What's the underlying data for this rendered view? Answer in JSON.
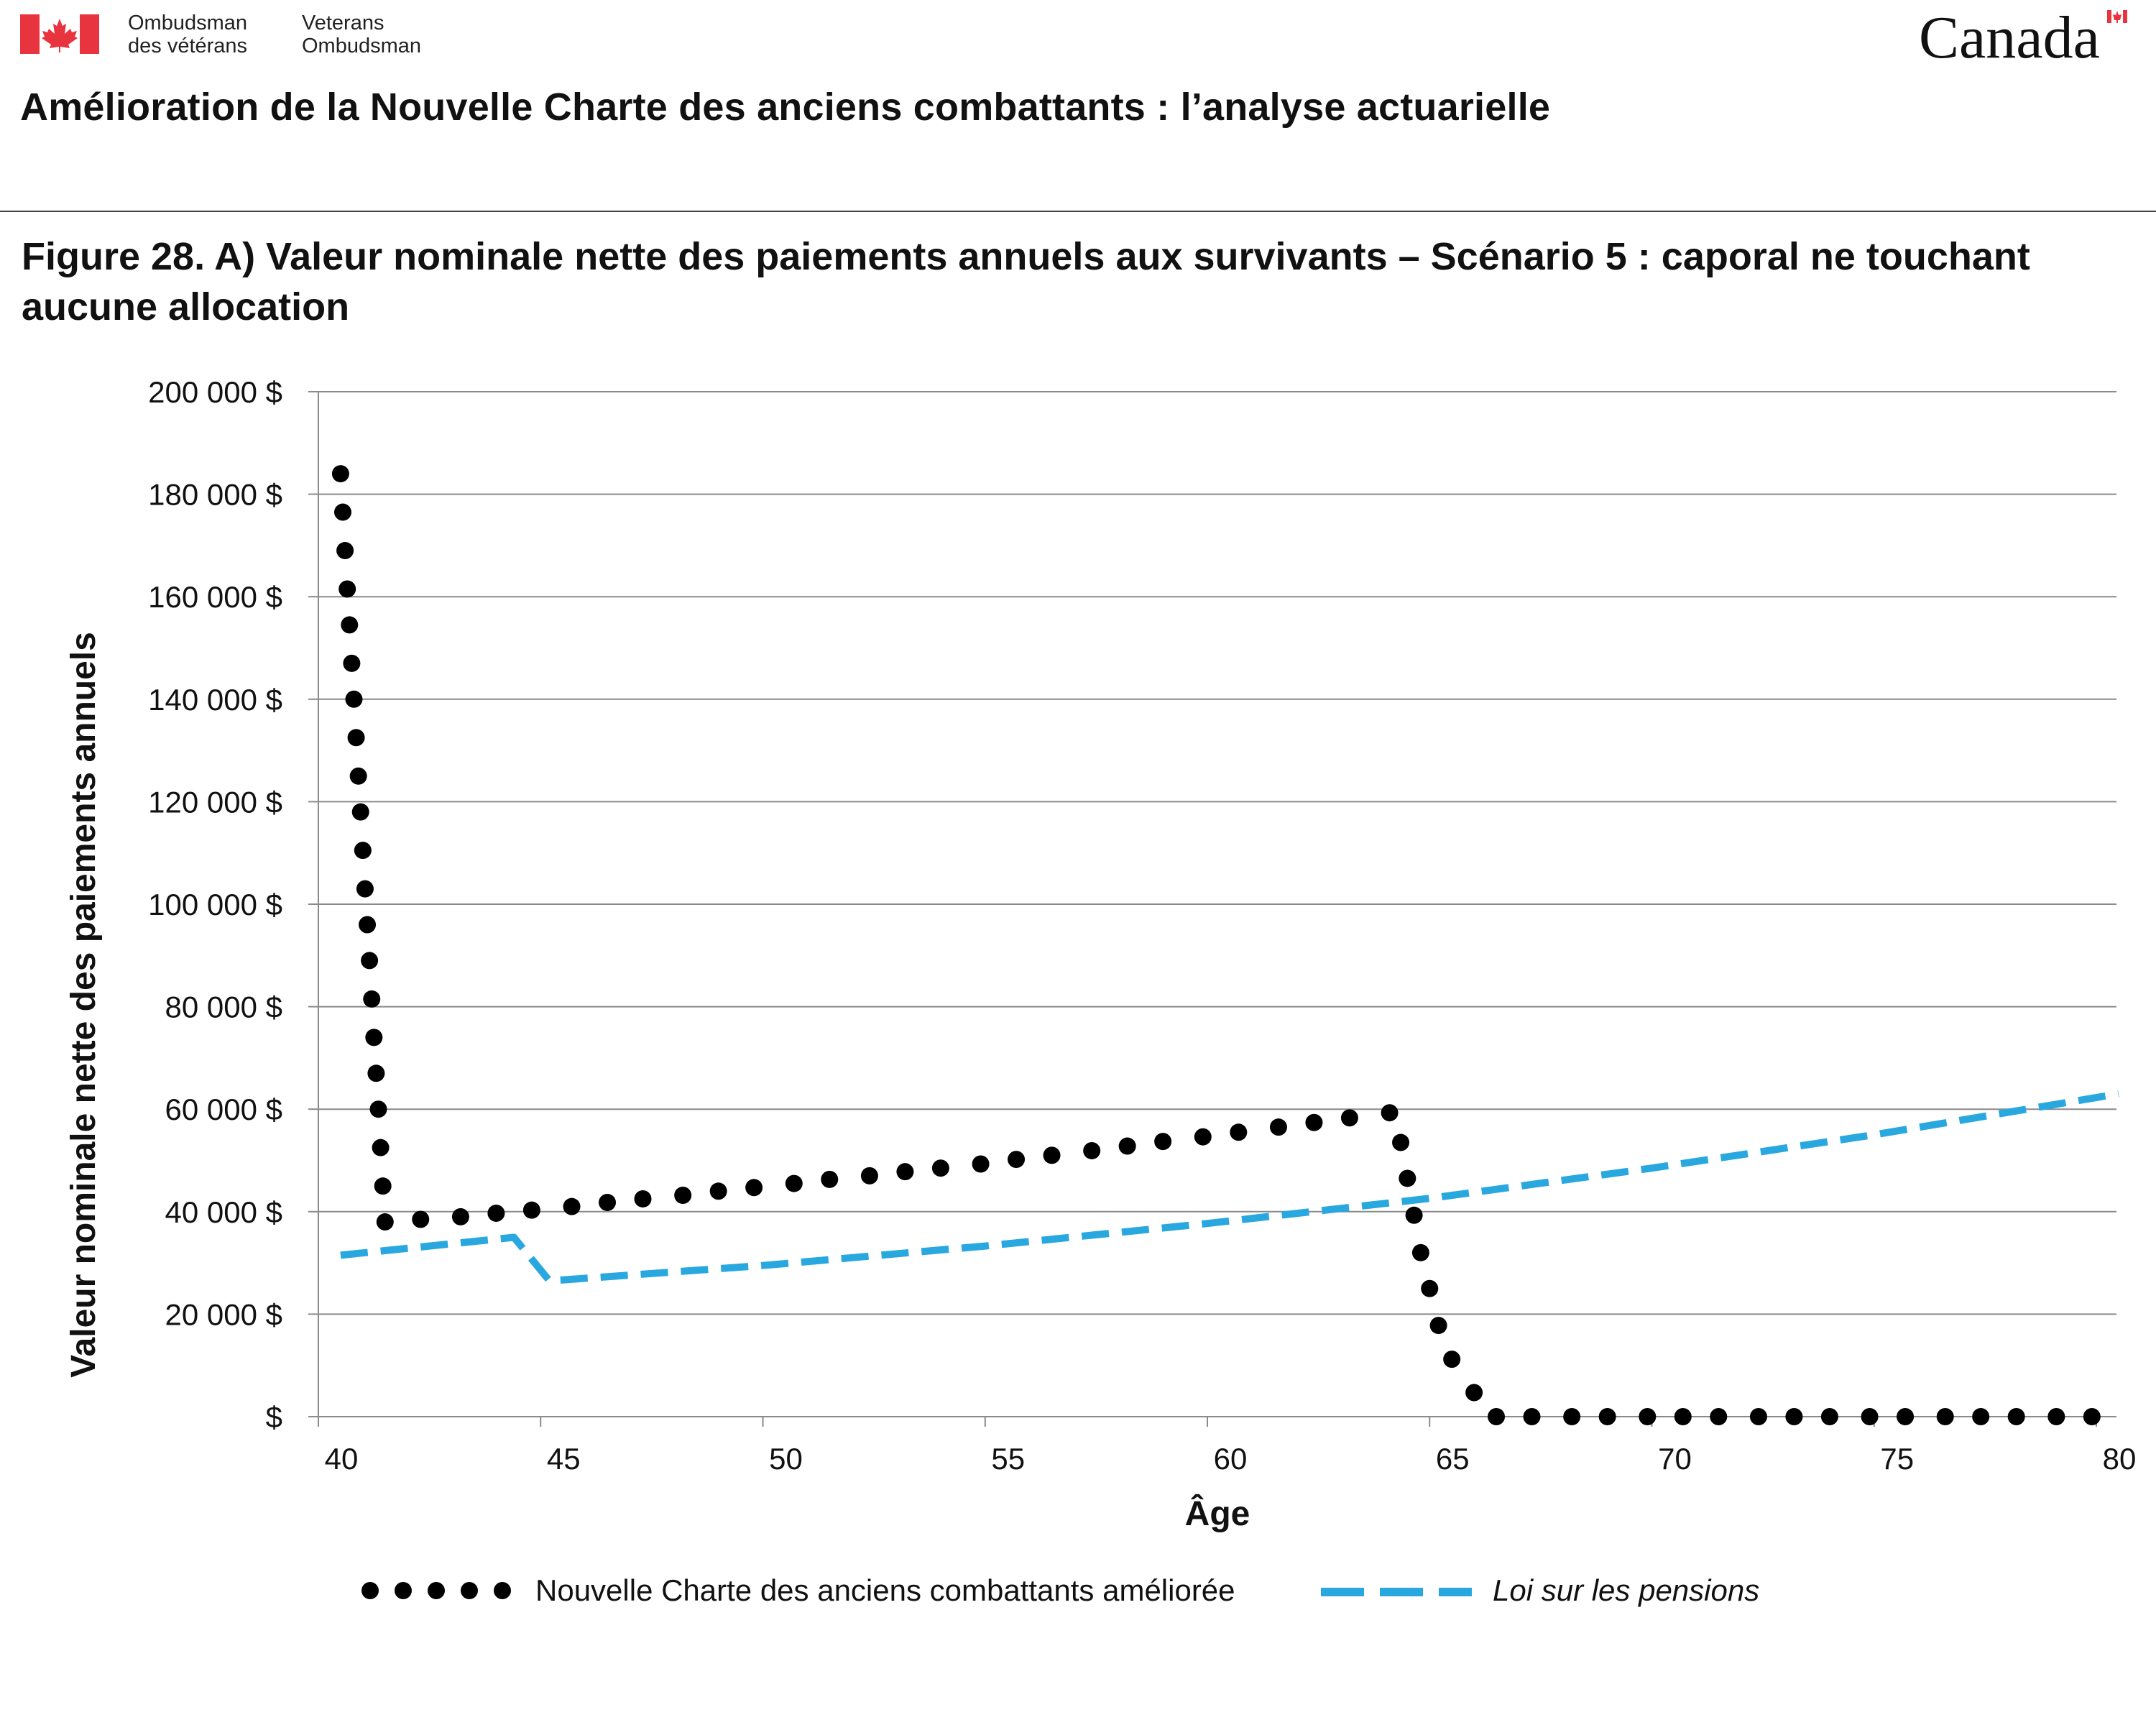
{
  "header": {
    "org_fr_line1": "Ombudsman",
    "org_fr_line2": "des vétérans",
    "org_en_line1": "Veterans",
    "org_en_line2": "Ombudsman",
    "wordmark": "Canada",
    "document_title": "Amélioration de la Nouvelle Charte des anciens combattants : l’analyse actuarielle",
    "flag_icon": "canada-flag-icon",
    "colors": {
      "flag_red": "#e8343e"
    }
  },
  "figure": {
    "title": "Figure 28. A) Valeur nominale nette des paiements annuels aux survivants – Scénario 5 : caporal ne touchant aucune allocation"
  },
  "chart_data": {
    "type": "line",
    "xlabel": "Âge",
    "ylabel": "Valeur nominale nette des paiements annuels",
    "xlim": [
      40,
      80
    ],
    "ylim": [
      0,
      200000
    ],
    "x_ticks": [
      "40",
      "45",
      "50",
      "55",
      "60",
      "65",
      "70",
      "75",
      "80"
    ],
    "y_ticks": [
      "$",
      "20 000 $",
      "40 000 $",
      "60 000 $",
      "80 000 $",
      "100 000 $",
      "120 000 $",
      "140 000 $",
      "160 000 $",
      "180 000 $",
      "200 000 $"
    ],
    "grid": "horizontal",
    "legend_position": "bottom",
    "series": [
      {
        "name": "Nouvelle Charte des anciens combattants améliorée",
        "style": "dotted",
        "color": "#000000",
        "points": [
          [
            40.5,
            184000
          ],
          [
            40.55,
            176500
          ],
          [
            40.6,
            169000
          ],
          [
            40.65,
            161500
          ],
          [
            40.7,
            154500
          ],
          [
            40.75,
            147000
          ],
          [
            40.8,
            140000
          ],
          [
            40.85,
            132500
          ],
          [
            40.9,
            125000
          ],
          [
            40.95,
            118000
          ],
          [
            41.0,
            110500
          ],
          [
            41.05,
            103000
          ],
          [
            41.1,
            96000
          ],
          [
            41.15,
            89000
          ],
          [
            41.2,
            81500
          ],
          [
            41.25,
            74000
          ],
          [
            41.3,
            67000
          ],
          [
            41.35,
            60000
          ],
          [
            41.4,
            52500
          ],
          [
            41.45,
            45000
          ],
          [
            41.5,
            38000
          ],
          [
            42.3,
            38500
          ],
          [
            43.2,
            39000
          ],
          [
            44.0,
            39700
          ],
          [
            44.8,
            40300
          ],
          [
            45.7,
            41000
          ],
          [
            46.5,
            41800
          ],
          [
            47.3,
            42500
          ],
          [
            48.2,
            43200
          ],
          [
            49.0,
            44000
          ],
          [
            49.8,
            44700
          ],
          [
            50.7,
            45500
          ],
          [
            51.5,
            46300
          ],
          [
            52.4,
            47000
          ],
          [
            53.2,
            47800
          ],
          [
            54.0,
            48500
          ],
          [
            54.9,
            49300
          ],
          [
            55.7,
            50200
          ],
          [
            56.5,
            51000
          ],
          [
            57.4,
            51900
          ],
          [
            58.2,
            52800
          ],
          [
            59.0,
            53700
          ],
          [
            59.9,
            54600
          ],
          [
            60.7,
            55500
          ],
          [
            61.6,
            56500
          ],
          [
            62.4,
            57400
          ],
          [
            63.2,
            58300
          ],
          [
            64.1,
            59300
          ],
          [
            64.35,
            53500
          ],
          [
            64.5,
            46500
          ],
          [
            64.65,
            39300
          ],
          [
            64.8,
            32000
          ],
          [
            65.0,
            25000
          ],
          [
            65.2,
            17800
          ],
          [
            65.5,
            11200
          ],
          [
            66.0,
            4700
          ],
          [
            66.5,
            0
          ],
          [
            67.3,
            0
          ],
          [
            68.2,
            0
          ],
          [
            69.0,
            0
          ],
          [
            69.9,
            0
          ],
          [
            70.7,
            0
          ],
          [
            71.5,
            0
          ],
          [
            72.4,
            0
          ],
          [
            73.2,
            0
          ],
          [
            74.0,
            0
          ],
          [
            74.9,
            0
          ],
          [
            75.7,
            0
          ],
          [
            76.6,
            0
          ],
          [
            77.4,
            0
          ],
          [
            78.2,
            0
          ],
          [
            79.1,
            0
          ],
          [
            79.9,
            0
          ]
        ]
      },
      {
        "name": "Loi sur les pensions",
        "style": "dashed",
        "color": "#29a8e0",
        "points": [
          [
            40.5,
            31500
          ],
          [
            44.4,
            35000
          ],
          [
            45.2,
            26500
          ],
          [
            50,
            29500
          ],
          [
            55,
            33300
          ],
          [
            60,
            37700
          ],
          [
            65,
            42600
          ],
          [
            70,
            48500
          ],
          [
            75,
            55000
          ],
          [
            80.5,
            63000
          ]
        ]
      }
    ]
  }
}
